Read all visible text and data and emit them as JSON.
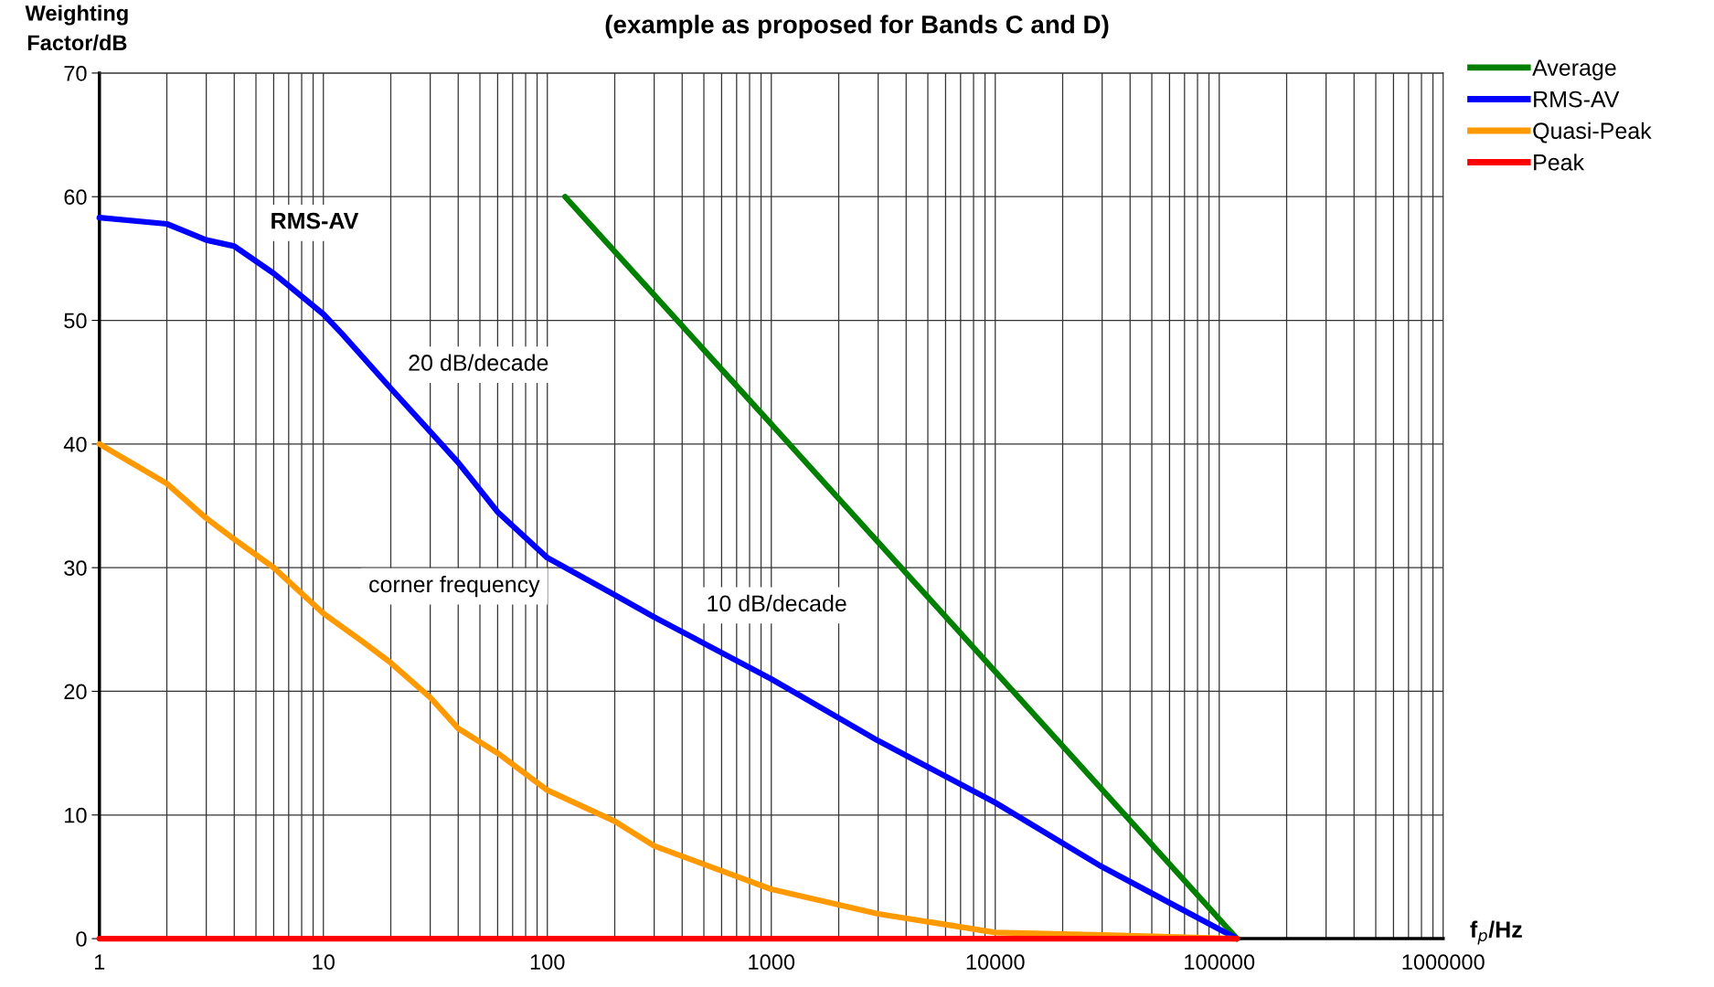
{
  "chart_data": {
    "type": "line",
    "title": "(example as proposed for Bands C and D)",
    "ylabel": "Weighting\nFactor/dB",
    "xlabel": "f$_{p}$/Hz",
    "log": "x",
    "series": [
      {
        "name": "Average",
        "color": "#008000",
        "x": [
          120,
          1000,
          10000,
          120000
        ],
        "values": [
          60,
          41.6,
          21.6,
          0
        ]
      },
      {
        "name": "RMS-AV",
        "color": "#0000ff",
        "x": [
          1,
          2,
          3,
          4,
          6,
          10,
          12,
          20,
          30,
          40,
          60,
          100,
          200,
          300,
          1000,
          3000,
          10000,
          30000,
          120000
        ],
        "values": [
          58.3,
          57.8,
          56.5,
          56,
          53.8,
          50.5,
          49,
          44.5,
          41,
          38.5,
          34.5,
          30.8,
          27.8,
          26,
          21,
          16,
          11,
          5.8,
          0
        ]
      },
      {
        "name": "Quasi-Peak",
        "color": "#ff9900",
        "x": [
          1,
          2,
          3,
          4,
          6,
          10,
          15,
          20,
          30,
          40,
          60,
          100,
          200,
          300,
          1000,
          3000,
          10000,
          30000,
          120000
        ],
        "values": [
          40,
          36.8,
          34,
          32.3,
          30,
          26.3,
          24,
          22.3,
          19.5,
          17,
          15,
          12,
          9.5,
          7.5,
          4,
          2,
          0.5,
          0.3,
          0
        ]
      },
      {
        "name": "Peak",
        "color": "#ff0000",
        "x": [
          1,
          120000
        ],
        "values": [
          0,
          0
        ]
      }
    ],
    "xlim": [
      1,
      1000000
    ],
    "xticks": [
      1,
      10,
      100,
      1000,
      10000,
      100000,
      1000000
    ],
    "ylim": [
      0,
      70
    ],
    "yticks": [
      0,
      10,
      20,
      30,
      40,
      50,
      60,
      70
    ],
    "grid": true,
    "legend": "top right",
    "marker": "none",
    "line_style": "solid",
    "annotations": [
      "RMS-AV",
      "20 dB/decade",
      "corner frequency",
      "10 dB/decade"
    ]
  }
}
